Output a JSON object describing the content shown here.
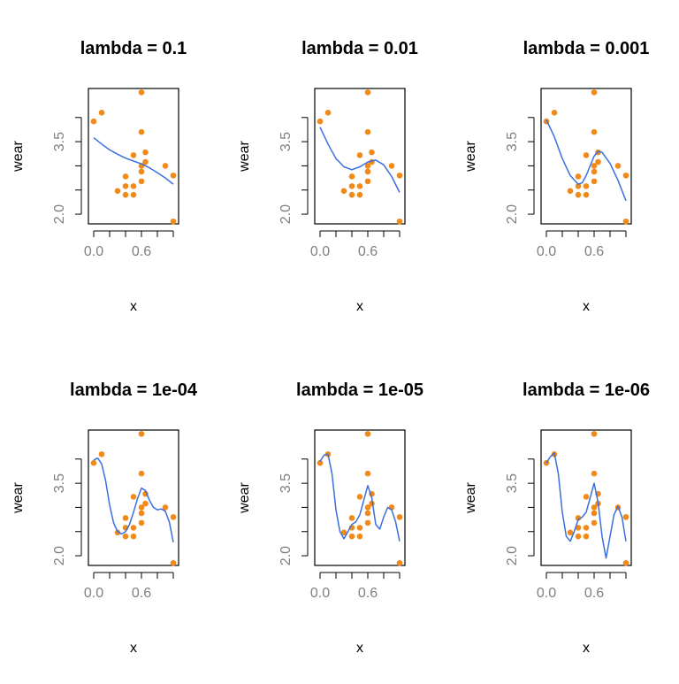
{
  "chart_data": {
    "type": "scatter",
    "shared": {
      "xlabel": "x",
      "ylabel": "wear",
      "xlim": [
        0.0,
        1.0
      ],
      "ylim": [
        1.8,
        4.6
      ],
      "x_ticks": [
        0.0,
        0.2,
        0.4,
        0.6,
        0.8,
        1.0
      ],
      "x_tick_labels": [
        "0.0",
        "",
        "",
        "0.6",
        "",
        ""
      ],
      "y_ticks": [
        2.0,
        2.5,
        3.0,
        3.5,
        4.0
      ],
      "y_tick_labels": [
        "2.0",
        "",
        "",
        "3.5",
        ""
      ],
      "point_color": "#f28a1a",
      "line_color": "#3b6fe0",
      "points": [
        {
          "x": 0.0,
          "y": 3.92
        },
        {
          "x": 0.1,
          "y": 4.1
        },
        {
          "x": 0.3,
          "y": 2.48
        },
        {
          "x": 0.4,
          "y": 2.78
        },
        {
          "x": 0.4,
          "y": 2.58
        },
        {
          "x": 0.4,
          "y": 2.4
        },
        {
          "x": 0.5,
          "y": 3.22
        },
        {
          "x": 0.5,
          "y": 2.58
        },
        {
          "x": 0.5,
          "y": 2.4
        },
        {
          "x": 0.6,
          "y": 4.52
        },
        {
          "x": 0.6,
          "y": 3.7
        },
        {
          "x": 0.6,
          "y": 3.0
        },
        {
          "x": 0.6,
          "y": 2.88
        },
        {
          "x": 0.6,
          "y": 2.68
        },
        {
          "x": 0.65,
          "y": 3.28
        },
        {
          "x": 0.65,
          "y": 3.08
        },
        {
          "x": 0.9,
          "y": 3.0
        },
        {
          "x": 1.0,
          "y": 2.8
        },
        {
          "x": 1.0,
          "y": 1.85
        }
      ]
    },
    "panels": [
      {
        "title": "lambda =  0.1",
        "fit": {
          "x": [
            0,
            0.1,
            0.2,
            0.3,
            0.4,
            0.5,
            0.6,
            0.7,
            0.8,
            0.9,
            1.0
          ],
          "y": [
            3.58,
            3.45,
            3.33,
            3.24,
            3.16,
            3.1,
            3.04,
            2.96,
            2.86,
            2.75,
            2.62
          ]
        }
      },
      {
        "title": "lambda =  0.01",
        "fit": {
          "x": [
            0,
            0.1,
            0.2,
            0.3,
            0.4,
            0.5,
            0.6,
            0.7,
            0.8,
            0.9,
            1.0
          ],
          "y": [
            3.8,
            3.45,
            3.15,
            2.98,
            2.92,
            2.98,
            3.08,
            3.12,
            3.02,
            2.78,
            2.45
          ]
        }
      },
      {
        "title": "lambda =  0.001",
        "fit": {
          "x": [
            0,
            0.1,
            0.2,
            0.3,
            0.4,
            0.45,
            0.5,
            0.6,
            0.65,
            0.7,
            0.8,
            0.9,
            1.0
          ],
          "y": [
            3.95,
            3.6,
            3.15,
            2.8,
            2.62,
            2.65,
            2.8,
            3.2,
            3.3,
            3.28,
            3.05,
            2.7,
            2.28
          ]
        }
      },
      {
        "title": "lambda =  1e-04",
        "fit": {
          "x": [
            0,
            0.05,
            0.1,
            0.15,
            0.2,
            0.25,
            0.3,
            0.35,
            0.4,
            0.45,
            0.5,
            0.55,
            0.6,
            0.65,
            0.7,
            0.75,
            0.8,
            0.85,
            0.9,
            0.95,
            1.0
          ],
          "y": [
            3.98,
            4.02,
            3.9,
            3.55,
            3.05,
            2.68,
            2.5,
            2.45,
            2.5,
            2.65,
            2.9,
            3.18,
            3.4,
            3.35,
            3.15,
            3.0,
            2.95,
            2.97,
            2.92,
            2.7,
            2.28
          ]
        }
      },
      {
        "title": "lambda =  1e-05",
        "fit": {
          "x": [
            0,
            0.05,
            0.1,
            0.15,
            0.2,
            0.25,
            0.3,
            0.35,
            0.4,
            0.45,
            0.5,
            0.55,
            0.6,
            0.65,
            0.7,
            0.75,
            0.8,
            0.85,
            0.9,
            0.95,
            1.0
          ],
          "y": [
            3.95,
            4.08,
            4.1,
            3.7,
            2.95,
            2.5,
            2.35,
            2.5,
            2.65,
            2.7,
            2.85,
            3.15,
            3.45,
            3.2,
            2.65,
            2.55,
            2.8,
            3.0,
            2.95,
            2.7,
            2.3
          ]
        }
      },
      {
        "title": "lambda =  1e-06",
        "fit": {
          "x": [
            0,
            0.05,
            0.1,
            0.15,
            0.2,
            0.25,
            0.3,
            0.35,
            0.4,
            0.45,
            0.5,
            0.55,
            0.6,
            0.65,
            0.7,
            0.75,
            0.8,
            0.85,
            0.9,
            0.95,
            1.0
          ],
          "y": [
            3.92,
            4.05,
            4.12,
            3.7,
            2.9,
            2.4,
            2.3,
            2.5,
            2.75,
            2.8,
            2.9,
            3.2,
            3.5,
            3.1,
            2.4,
            1.95,
            2.4,
            2.85,
            3.02,
            2.8,
            2.3
          ]
        }
      }
    ]
  }
}
